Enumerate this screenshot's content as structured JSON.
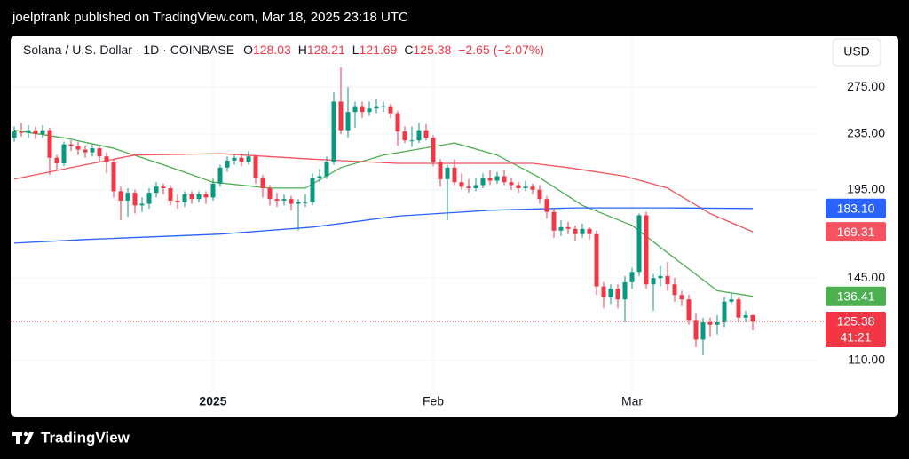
{
  "header": {
    "text": "joelpfrank published on TradingView.com, Mar 18, 2025 23:18 UTC"
  },
  "footer": {
    "brand": "TradingView"
  },
  "chart_data": {
    "type": "candlestick",
    "legend": {
      "symbol": "Solana / U.S. Dollar · 1D · COINBASE",
      "ohlc_letters": [
        "O",
        "H",
        "L",
        "C"
      ],
      "change": {
        "value": -2.65,
        "label": "−2.65"
      },
      "change_pct": {
        "value": -2.07,
        "label": "(−2.07%)"
      }
    },
    "currency": "USD",
    "countdown": "41:21",
    "log_scale": true,
    "grid": true,
    "up_color": "#089981",
    "down_color": "#f23645",
    "xlim": [
      -0.5,
      113.25
    ],
    "xticks": [
      {
        "value": 28,
        "label": "2025",
        "bold": true
      },
      {
        "value": 59,
        "label": "Feb"
      },
      {
        "value": 87,
        "label": "Mar"
      }
    ],
    "ylim": [
      100,
      327
    ],
    "yticks": [
      {
        "value": 110,
        "label": "110.00"
      },
      {
        "value": 145,
        "label": "145.00"
      },
      {
        "value": 195,
        "label": "195.00"
      },
      {
        "value": 235,
        "label": "235.00"
      },
      {
        "value": 275,
        "label": "275.00"
      }
    ],
    "open": [
      232,
      237,
      236,
      238,
      235,
      238,
      217,
      213,
      227,
      226,
      223,
      221,
      224,
      218,
      214,
      194,
      188,
      193,
      185,
      186,
      193,
      197,
      196,
      188,
      187,
      192,
      189,
      192,
      190,
      199,
      210,
      215,
      217,
      214,
      218,
      203,
      196,
      189,
      188,
      189,
      186,
      187,
      187,
      203,
      204,
      214,
      262,
      238,
      253,
      258,
      253,
      256,
      258,
      258,
      252,
      237,
      230,
      230,
      238,
      232,
      214,
      202,
      210,
      200,
      197,
      196,
      198,
      203,
      201,
      204,
      200,
      198,
      196,
      197,
      195,
      189,
      181,
      170,
      172,
      171,
      168,
      171,
      168,
      141,
      136,
      140,
      135,
      143,
      148,
      179,
      142,
      145,
      146,
      142,
      137,
      135,
      126,
      118,
      125,
      124,
      125,
      134,
      135,
      127,
      128.03
    ],
    "high": [
      241,
      244,
      242,
      241,
      242,
      240,
      219,
      229,
      230,
      229,
      226,
      227,
      226,
      221,
      216,
      197,
      196,
      195,
      190,
      196,
      200,
      199,
      198,
      192,
      194,
      194,
      194,
      194,
      203,
      212,
      218,
      219,
      220,
      222,
      219,
      205,
      198,
      193,
      192,
      191,
      189,
      192,
      206,
      209,
      218,
      270,
      294,
      275,
      262,
      262,
      262,
      264,
      262,
      260,
      254,
      241,
      241,
      244,
      243,
      234,
      216,
      212,
      216,
      206,
      202,
      203,
      206,
      208,
      207,
      208,
      203,
      200,
      201,
      199,
      198,
      191,
      183,
      176,
      175,
      173,
      174,
      172,
      170,
      143,
      142,
      142,
      146,
      150,
      180,
      181,
      147,
      151,
      153,
      145,
      139,
      137,
      129,
      127,
      127,
      128,
      136,
      138,
      136,
      130,
      128.21
    ],
    "low": [
      229,
      233,
      232,
      231,
      232,
      205,
      208,
      211,
      222,
      219,
      217,
      218,
      214,
      206,
      190,
      176,
      178,
      180,
      181,
      183,
      190,
      192,
      185,
      183,
      184,
      186,
      187,
      186,
      188,
      197,
      207,
      212,
      211,
      212,
      199,
      190,
      185,
      184,
      185,
      182,
      170,
      184,
      185,
      200,
      202,
      212,
      235,
      232,
      240,
      248,
      250,
      252,
      253,
      248,
      226,
      228,
      225,
      228,
      230,
      211,
      197,
      176,
      198,
      195,
      193,
      194,
      196,
      198,
      199,
      198,
      195,
      193,
      194,
      192,
      186,
      177,
      166,
      167,
      168,
      164,
      166,
      165,
      137,
      131,
      133,
      131,
      125,
      140,
      146,
      140,
      130,
      141,
      139,
      134,
      132,
      124,
      115,
      112,
      119,
      120,
      123,
      133,
      125,
      125,
      121.69
    ],
    "close": [
      237,
      236,
      238,
      235,
      238,
      217,
      213,
      227,
      226,
      223,
      221,
      224,
      218,
      214,
      194,
      188,
      193,
      185,
      186,
      193,
      197,
      196,
      188,
      187,
      192,
      189,
      192,
      190,
      199,
      210,
      215,
      217,
      214,
      218,
      203,
      196,
      189,
      188,
      189,
      186,
      187,
      187,
      203,
      204,
      214,
      262,
      238,
      253,
      258,
      253,
      256,
      258,
      258,
      252,
      237,
      230,
      230,
      238,
      232,
      214,
      202,
      210,
      200,
      197,
      196,
      198,
      203,
      201,
      204,
      200,
      198,
      196,
      197,
      195,
      189,
      181,
      170,
      172,
      171,
      168,
      171,
      168,
      141,
      136,
      140,
      135,
      143,
      148,
      179,
      142,
      145,
      146,
      142,
      137,
      135,
      126,
      118,
      125,
      124,
      125,
      134,
      135,
      127,
      128,
      125.38
    ],
    "moving_averages": [
      {
        "color": "#4caf50",
        "x": [
          0,
          7,
          14,
          21,
          28,
          36,
          41,
          46,
          52,
          62,
          68,
          74,
          80,
          87,
          93,
          99,
          104
        ],
        "values": [
          238,
          232,
          224,
          212,
          200,
          196,
          196,
          210,
          219,
          228,
          219,
          203,
          185,
          173,
          155,
          139,
          136.41
        ],
        "last_label": "136.41"
      },
      {
        "color": "#f7525f",
        "x": [
          0,
          10,
          17,
          29,
          42,
          54,
          63,
          73,
          78,
          86,
          92,
          98,
          104
        ],
        "values": [
          202,
          212,
          219,
          220,
          216,
          213,
          213,
          213,
          210,
          204,
          196,
          180,
          169.31
        ],
        "last_label": "169.31"
      },
      {
        "color": "#2962ff",
        "x": [
          0,
          10,
          29,
          42,
          54,
          67,
          79,
          92,
          104
        ],
        "values": [
          163,
          165,
          168,
          172,
          178.5,
          182,
          183.5,
          183.5,
          183.1
        ],
        "last_label": "183.10"
      }
    ]
  }
}
